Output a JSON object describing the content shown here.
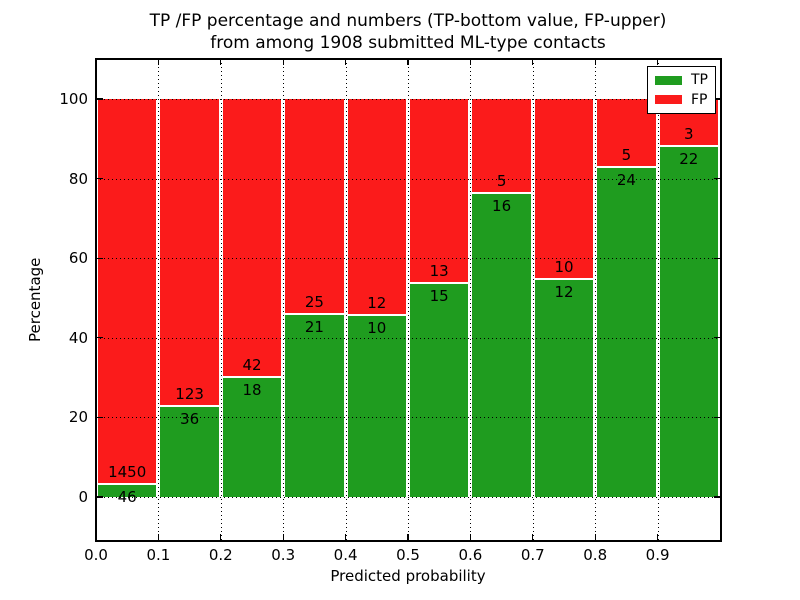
{
  "chart_data": {
    "type": "bar",
    "stacked": true,
    "normalized_to_percent": true,
    "title_line1": "TP /FP percentage and numbers (TP-bottom value, FP-upper)",
    "title_line2": "from among 1908 submitted ML-type contacts",
    "xlabel": "Predicted probability",
    "ylabel": "Percentage",
    "categories": [
      "0.0-0.1",
      "0.1-0.2",
      "0.2-0.3",
      "0.3-0.4",
      "0.4-0.5",
      "0.5-0.6",
      "0.6-0.7",
      "0.7-0.8",
      "0.8-0.9",
      "0.9-1.0"
    ],
    "x_tick_labels": [
      "0.0",
      "0.1",
      "0.2",
      "0.3",
      "0.4",
      "0.5",
      "0.6",
      "0.7",
      "0.8",
      "0.9"
    ],
    "y_ticks": [
      "0",
      "20",
      "40",
      "60",
      "80",
      "100"
    ],
    "y_tick_values": [
      0,
      20,
      40,
      60,
      80,
      100
    ],
    "xlim": [
      0.0,
      1.0
    ],
    "ylim": [
      -10.8,
      110.3
    ],
    "grid": "dotted black, drawn above bars",
    "legend_position": "upper right",
    "series": [
      {
        "name": "TP",
        "color": "#1f9c1f",
        "counts": [
          46,
          36,
          18,
          21,
          10,
          15,
          16,
          12,
          24,
          22
        ]
      },
      {
        "name": "FP",
        "color": "#fb1b1b",
        "counts": [
          1450,
          123,
          42,
          25,
          12,
          13,
          5,
          10,
          5,
          3
        ]
      }
    ],
    "tp_percent_of_bin": [
      3.07,
      22.64,
      30.0,
      45.65,
      45.45,
      53.57,
      76.19,
      54.55,
      82.76,
      88.0
    ],
    "total_contacts": 1908
  },
  "legend": {
    "entries": [
      {
        "label": "TP",
        "color": "#1f9c1f"
      },
      {
        "label": "FP",
        "color": "#fb1b1b"
      }
    ]
  },
  "colors": {
    "tp": "#1f9c1f",
    "fp": "#fb1b1b",
    "grid": "#000000",
    "background": "#ffffff"
  }
}
